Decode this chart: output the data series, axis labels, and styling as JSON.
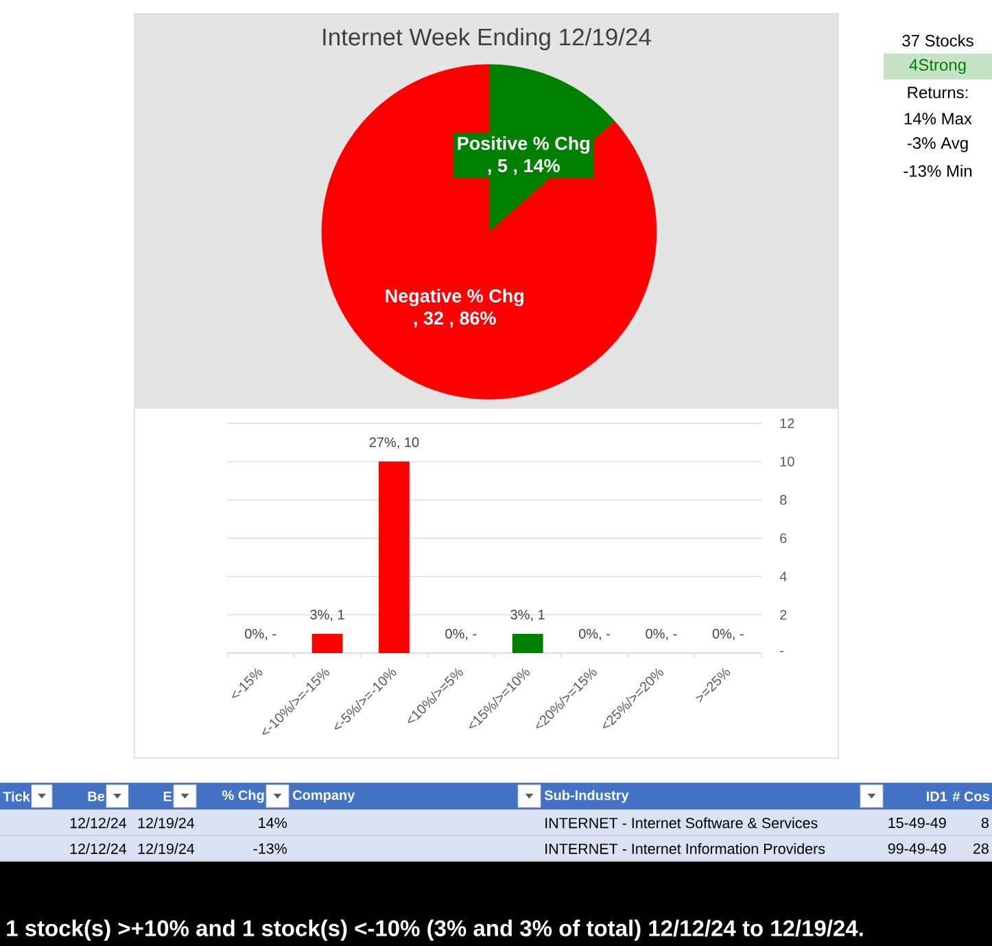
{
  "chart_data": [
    {
      "type": "pie",
      "title": "Internet Week Ending 12/19/24",
      "categories": [
        "Positive % Chg",
        "Negative % Chg"
      ],
      "values": [
        5,
        32
      ],
      "colors": [
        "#008000",
        "#ff0000"
      ],
      "value_labels": [
        ", 5 , 14%",
        ", 32 , 86%"
      ]
    },
    {
      "type": "bar",
      "categories": [
        "<-15%",
        "<-10%/>=-15%",
        "<-5%/>=-10%",
        "<10%/>=5%",
        "<15%/>=10%",
        "<20%/>=15%",
        "<25%/>=20%",
        ">=25%"
      ],
      "values": [
        0,
        1,
        10,
        0,
        1,
        0,
        0,
        0
      ],
      "colors": [
        "#ff0000",
        "#ff0000",
        "#ff0000",
        "#008000",
        "#008000",
        "#008000",
        "#008000",
        "#008000"
      ],
      "value_labels": [
        "0%, -",
        "3%, 1",
        "27%, 10",
        "0%, -",
        "3%, 1",
        "0%, -",
        "0%, -",
        "0%, -"
      ],
      "ylim": [
        0,
        12
      ],
      "yticks": [
        {
          "value": 0,
          "label": "-"
        },
        2,
        4,
        6,
        8,
        10,
        12
      ],
      "grid": "y"
    },
    {
      "type": "other",
      "annotations": [
        "37 Stocks",
        "4Strong",
        "Returns:",
        "14% Max",
        "-3% Avg",
        "-13% Min"
      ],
      "colors": [
        null,
        "#008000",
        null,
        null,
        null,
        null
      ]
    },
    {
      "type": "other",
      "categories": [
        "Tick",
        "Be",
        "E",
        "% Chg",
        "Company",
        "Sub-Industry",
        "ID1",
        "# Cos"
      ],
      "cell_labels": [
        [
          null,
          "12/12/24",
          "12/19/24",
          "14%",
          null,
          "INTERNET - Internet Software & Services",
          "15-49-49",
          "8"
        ],
        [
          null,
          "12/12/24",
          "12/19/24",
          "-13%",
          null,
          "INTERNET - Internet Information Providers",
          "99-49-49",
          "28"
        ]
      ],
      "annotations": [
        "1 stock(s) >+10% and 1 stock(s) <-10% (3% and 3% of total) 12/12/24 to 12/19/24."
      ]
    }
  ]
}
